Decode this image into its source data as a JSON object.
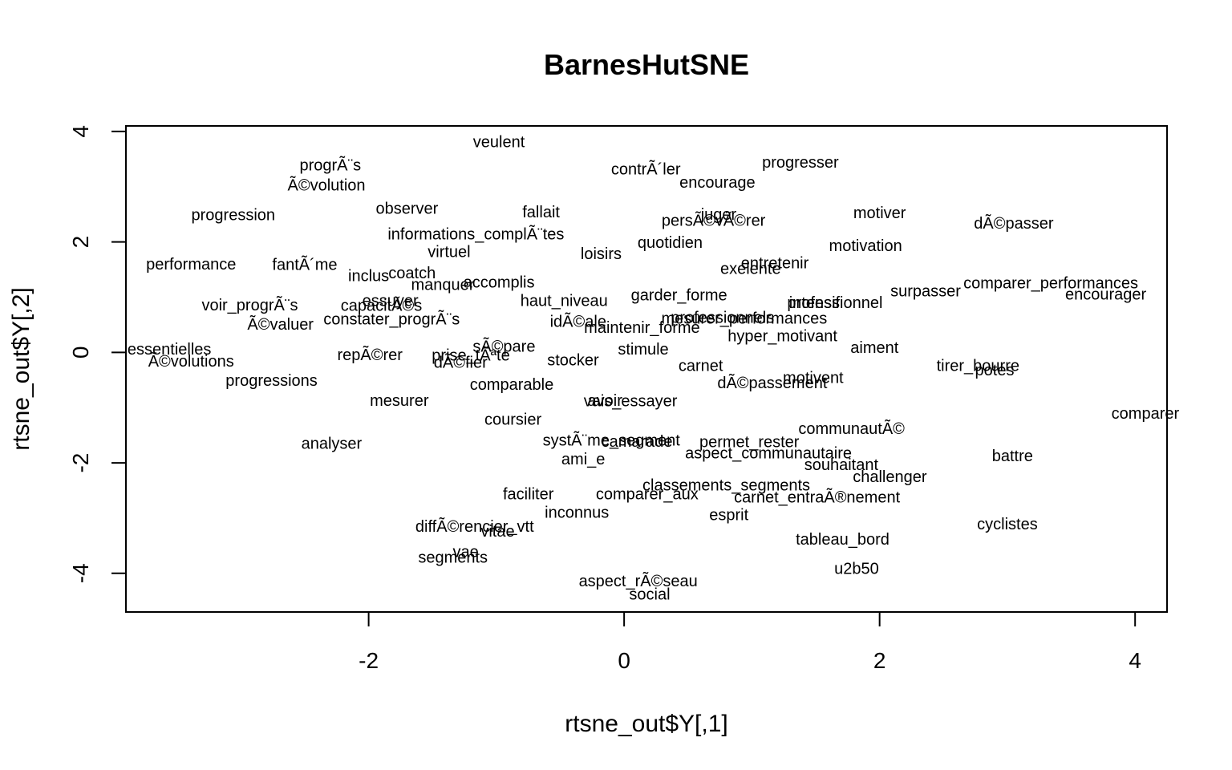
{
  "chart_data": {
    "type": "scatter",
    "title": "BarnesHutSNE",
    "xlabel": "rtsne_out$Y[,1]",
    "ylabel": "rtsne_out$Y[,2]",
    "xlim": [
      -3.9,
      4.25
    ],
    "ylim": [
      -4.7,
      4.1
    ],
    "xticks": [
      -2,
      0,
      2,
      4
    ],
    "yticks": [
      -4,
      -2,
      0,
      2,
      4
    ],
    "grid": false,
    "points": [
      {
        "label": "veulent",
        "x": -0.98,
        "y": 3.8
      },
      {
        "label": "progrÃ¨s",
        "x": -2.3,
        "y": 3.38
      },
      {
        "label": "contrÃ´ler",
        "x": 0.17,
        "y": 3.31
      },
      {
        "label": "progresser",
        "x": 1.38,
        "y": 3.43
      },
      {
        "label": "Ã©volution",
        "x": -2.33,
        "y": 3.02
      },
      {
        "label": "encourage",
        "x": 0.73,
        "y": 3.07
      },
      {
        "label": "progression",
        "x": -3.06,
        "y": 2.48
      },
      {
        "label": "observer",
        "x": -1.7,
        "y": 2.6
      },
      {
        "label": "fallait",
        "x": -0.65,
        "y": 2.53
      },
      {
        "label": "juger",
        "x": 0.74,
        "y": 2.49
      },
      {
        "label": "persÃ©vÃ©rer",
        "x": 0.7,
        "y": 2.38
      },
      {
        "label": "motiver",
        "x": 2.0,
        "y": 2.52
      },
      {
        "label": "dÃ©passer",
        "x": 3.05,
        "y": 2.33
      },
      {
        "label": "informations_complÃ¨tes",
        "x": -1.16,
        "y": 2.13
      },
      {
        "label": "virtuel",
        "x": -1.37,
        "y": 1.81
      },
      {
        "label": "loisirs",
        "x": -0.18,
        "y": 1.78
      },
      {
        "label": "quotidien",
        "x": 0.36,
        "y": 1.98
      },
      {
        "label": "motivation",
        "x": 1.89,
        "y": 1.92
      },
      {
        "label": "performance",
        "x": -3.39,
        "y": 1.59
      },
      {
        "label": "fantÃ´me",
        "x": -2.5,
        "y": 1.58
      },
      {
        "label": "entretenir",
        "x": 1.18,
        "y": 1.61
      },
      {
        "label": "exelente",
        "x": 0.99,
        "y": 1.51
      },
      {
        "label": "inclus",
        "x": -2.0,
        "y": 1.38
      },
      {
        "label": "coatch",
        "x": -1.66,
        "y": 1.43
      },
      {
        "label": "manquer",
        "x": -1.42,
        "y": 1.22
      },
      {
        "label": "accomplis",
        "x": -0.98,
        "y": 1.26
      },
      {
        "label": "surpasser",
        "x": 2.36,
        "y": 1.1
      },
      {
        "label": "comparer_performances",
        "x": 3.34,
        "y": 1.25
      },
      {
        "label": "encourager",
        "x": 3.77,
        "y": 1.04
      },
      {
        "label": "haut_niveau",
        "x": -0.47,
        "y": 0.93
      },
      {
        "label": "garder_forme",
        "x": 0.43,
        "y": 1.03
      },
      {
        "label": "professionnel",
        "x": 1.65,
        "y": 0.89
      },
      {
        "label": "intensif",
        "x": 1.49,
        "y": 0.89
      },
      {
        "label": "voir_progrÃ¨s",
        "x": -2.93,
        "y": 0.85
      },
      {
        "label": "capacitÃ©s",
        "x": -1.9,
        "y": 0.84
      },
      {
        "label": "essuyer",
        "x": -1.83,
        "y": 0.93
      },
      {
        "label": "Ã©valuer",
        "x": -2.69,
        "y": 0.5
      },
      {
        "label": "constater_progrÃ¨s",
        "x": -1.82,
        "y": 0.59
      },
      {
        "label": "idÃ©ale",
        "x": -0.36,
        "y": 0.55
      },
      {
        "label": "maintenir_forme",
        "x": 0.14,
        "y": 0.44
      },
      {
        "label": "mesurer_performances",
        "x": 0.94,
        "y": 0.61
      },
      {
        "label": "professionnels",
        "x": 0.77,
        "y": 0.62
      },
      {
        "label": "hyper_motivant",
        "x": 1.24,
        "y": 0.29
      },
      {
        "label": "essentielles",
        "x": -3.56,
        "y": 0.05
      },
      {
        "label": "Ã©volutions",
        "x": -3.39,
        "y": -0.17
      },
      {
        "label": "repÃ©rer",
        "x": -1.99,
        "y": -0.05
      },
      {
        "label": "prise_tÃªte",
        "x": -1.2,
        "y": -0.06
      },
      {
        "label": "sÃ©pare",
        "x": -0.94,
        "y": 0.1
      },
      {
        "label": "dÃ©fier",
        "x": -1.28,
        "y": -0.19
      },
      {
        "label": "stimule",
        "x": 0.15,
        "y": 0.05
      },
      {
        "label": "aiment",
        "x": 1.96,
        "y": 0.08
      },
      {
        "label": "stocker",
        "x": -0.4,
        "y": -0.15
      },
      {
        "label": "carnet",
        "x": 0.6,
        "y": -0.25
      },
      {
        "label": "tirer_bourre",
        "x": 2.77,
        "y": -0.25
      },
      {
        "label": "potes",
        "x": 2.9,
        "y": -0.33
      },
      {
        "label": "progressions",
        "x": -2.76,
        "y": -0.52
      },
      {
        "label": "comparable",
        "x": -0.88,
        "y": -0.59
      },
      {
        "label": "motivent",
        "x": 1.48,
        "y": -0.47
      },
      {
        "label": "dÃ©passement",
        "x": 1.16,
        "y": -0.56
      },
      {
        "label": "comparer",
        "x": 4.08,
        "y": -1.11
      },
      {
        "label": "mesurer",
        "x": -1.76,
        "y": -0.88
      },
      {
        "label": "vais_essayer",
        "x": 0.05,
        "y": -0.89
      },
      {
        "label": "avoir",
        "x": -0.15,
        "y": -0.88
      },
      {
        "label": "coursier",
        "x": -0.87,
        "y": -1.22
      },
      {
        "label": "communautÃ©",
        "x": 1.78,
        "y": -1.39
      },
      {
        "label": "systÃ¨me_segment",
        "x": -0.1,
        "y": -1.6
      },
      {
        "label": "camarade",
        "x": 0.1,
        "y": -1.62
      },
      {
        "label": "permet_rester",
        "x": 0.98,
        "y": -1.63
      },
      {
        "label": "analyser",
        "x": -2.29,
        "y": -1.66
      },
      {
        "label": "aspect_communautaire",
        "x": 1.13,
        "y": -1.83
      },
      {
        "label": "ami_e",
        "x": -0.32,
        "y": -1.94
      },
      {
        "label": "battre",
        "x": 3.04,
        "y": -1.88
      },
      {
        "label": "souhaitant",
        "x": 1.7,
        "y": -2.04
      },
      {
        "label": "challenger",
        "x": 2.08,
        "y": -2.26
      },
      {
        "label": "faciliter",
        "x": -0.75,
        "y": -2.57
      },
      {
        "label": "comparer_aux",
        "x": 0.18,
        "y": -2.57
      },
      {
        "label": "classements_segments",
        "x": 0.8,
        "y": -2.41
      },
      {
        "label": "carnet_entraÃ®nement",
        "x": 1.51,
        "y": -2.63
      },
      {
        "label": "inconnus",
        "x": -0.37,
        "y": -2.91
      },
      {
        "label": "esprit",
        "x": 0.82,
        "y": -2.95
      },
      {
        "label": "diffÃ©rencier_vtt",
        "x": -1.17,
        "y": -3.16
      },
      {
        "label": "vitae",
        "x": -0.99,
        "y": -3.25
      },
      {
        "label": "cyclistes",
        "x": 3.0,
        "y": -3.12
      },
      {
        "label": "tableau_bord",
        "x": 1.71,
        "y": -3.39
      },
      {
        "label": "vae",
        "x": -1.24,
        "y": -3.62
      },
      {
        "label": "segments",
        "x": -1.34,
        "y": -3.72
      },
      {
        "label": "u2b50",
        "x": 1.82,
        "y": -3.92
      },
      {
        "label": "aspect_rÃ©seau",
        "x": 0.11,
        "y": -4.15
      },
      {
        "label": "social",
        "x": 0.2,
        "y": -4.39
      }
    ]
  }
}
